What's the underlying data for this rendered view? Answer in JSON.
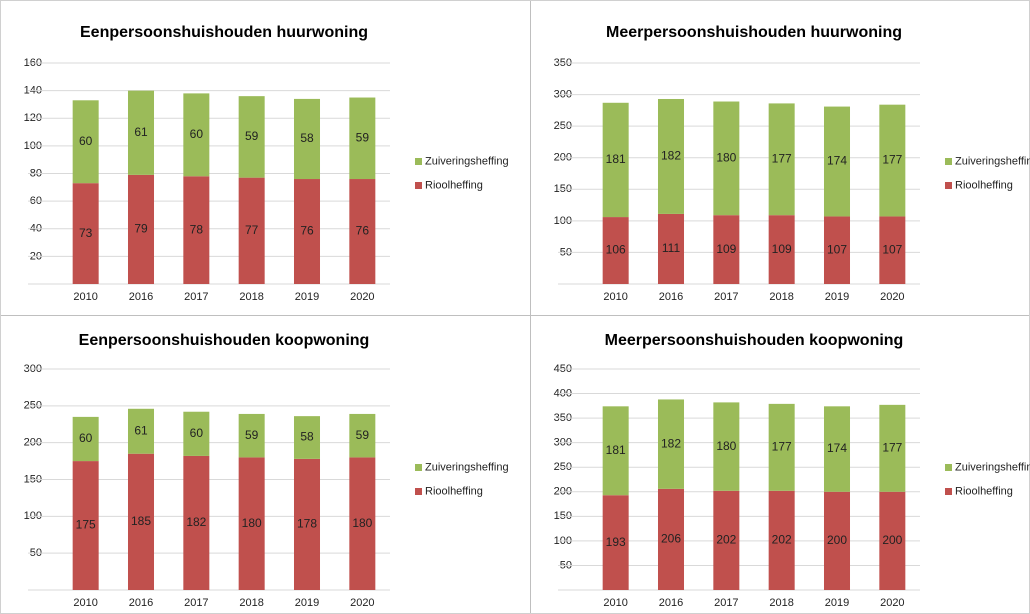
{
  "chart_data": [
    {
      "type": "bar",
      "title": "Eenpersoonshuishouden huurwoning",
      "categories": [
        "2010",
        "2016",
        "2017",
        "2018",
        "2019",
        "2020"
      ],
      "series": [
        {
          "name": "Rioolheffing",
          "color": "#c0504d",
          "values": [
            73,
            79,
            78,
            77,
            76,
            76
          ]
        },
        {
          "name": "Zuiveringsheffing",
          "color": "#9bbb59",
          "values": [
            60,
            61,
            60,
            59,
            58,
            59
          ]
        }
      ],
      "ylim": [
        0,
        160
      ],
      "yticks": [
        {
          "value": 0,
          "label": "-"
        },
        20,
        40,
        60,
        80,
        100,
        120,
        140,
        160
      ],
      "grid": true,
      "stacked": true
    },
    {
      "type": "bar",
      "title": "Meerpersoonshuishouden huurwoning",
      "categories": [
        "2010",
        "2016",
        "2017",
        "2018",
        "2019",
        "2020"
      ],
      "series": [
        {
          "name": "Rioolheffing",
          "color": "#c0504d",
          "values": [
            106,
            111,
            109,
            109,
            107,
            107
          ]
        },
        {
          "name": "Zuiveringsheffing",
          "color": "#9bbb59",
          "values": [
            181,
            182,
            180,
            177,
            174,
            177
          ]
        }
      ],
      "ylim": [
        0,
        350
      ],
      "yticks": [
        {
          "value": 0,
          "label": "-"
        },
        50,
        100,
        150,
        200,
        250,
        300,
        350
      ],
      "grid": true,
      "stacked": true
    },
    {
      "type": "bar",
      "title": "Eenpersoonshuishouden koopwoning",
      "categories": [
        "2010",
        "2016",
        "2017",
        "2018",
        "2019",
        "2020"
      ],
      "series": [
        {
          "name": "Rioolheffing",
          "color": "#c0504d",
          "values": [
            175,
            185,
            182,
            180,
            178,
            180
          ]
        },
        {
          "name": "Zuiveringsheffing",
          "color": "#9bbb59",
          "values": [
            60,
            61,
            60,
            59,
            58,
            59
          ]
        }
      ],
      "ylim": [
        0,
        300
      ],
      "yticks": [
        {
          "value": 0,
          "label": "-"
        },
        50,
        100,
        150,
        200,
        250,
        300
      ],
      "grid": true,
      "stacked": true
    },
    {
      "type": "bar",
      "title": "Meerpersoonshuishouden koopwoning",
      "categories": [
        "2010",
        "2016",
        "2017",
        "2018",
        "2019",
        "2020"
      ],
      "series": [
        {
          "name": "Rioolheffing",
          "color": "#c0504d",
          "values": [
            193,
            206,
            202,
            202,
            200,
            200
          ]
        },
        {
          "name": "Zuiveringsheffing",
          "color": "#9bbb59",
          "values": [
            181,
            182,
            180,
            177,
            174,
            177
          ]
        }
      ],
      "ylim": [
        0,
        450
      ],
      "yticks": [
        {
          "value": 0,
          "label": "-"
        },
        50,
        100,
        150,
        200,
        250,
        300,
        350,
        400,
        450
      ],
      "grid": true,
      "stacked": true
    }
  ]
}
